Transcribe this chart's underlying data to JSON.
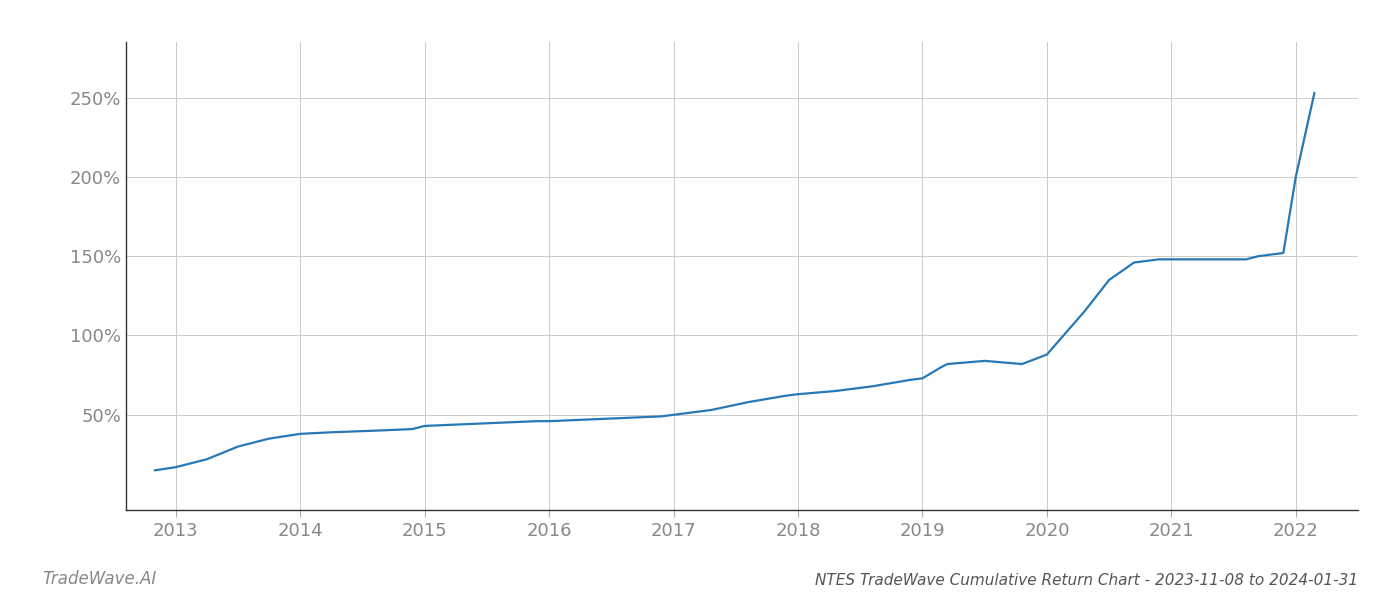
{
  "title": "NTES TradeWave Cumulative Return Chart - 2023-11-08 to 2024-01-31",
  "watermark": "TradeWave.AI",
  "line_color": "#2878b5",
  "line_width": 1.6,
  "background_color": "#ffffff",
  "grid_color": "#cccccc",
  "x_years": [
    2013,
    2014,
    2015,
    2016,
    2017,
    2018,
    2019,
    2020,
    2021,
    2022
  ],
  "x_data": [
    2012.83,
    2013.0,
    2013.25,
    2013.5,
    2013.75,
    2014.0,
    2014.25,
    2014.6,
    2014.9,
    2015.0,
    2015.3,
    2015.6,
    2015.9,
    2016.0,
    2016.3,
    2016.6,
    2016.9,
    2017.0,
    2017.3,
    2017.6,
    2017.9,
    2018.0,
    2018.3,
    2018.6,
    2018.9,
    2019.0,
    2019.15,
    2019.2,
    2019.5,
    2019.8,
    2020.0,
    2020.3,
    2020.5,
    2020.7,
    2020.9,
    2021.0,
    2021.3,
    2021.6,
    2021.65,
    2021.7,
    2021.9,
    2022.0,
    2022.15
  ],
  "y_data": [
    15,
    17,
    22,
    30,
    35,
    38,
    39,
    40,
    41,
    43,
    44,
    45,
    46,
    46,
    47,
    48,
    49,
    50,
    53,
    58,
    62,
    63,
    65,
    68,
    72,
    73,
    80,
    82,
    84,
    82,
    88,
    115,
    135,
    146,
    148,
    148,
    148,
    148,
    149,
    150,
    152,
    200,
    253
  ],
  "yticks": [
    50,
    100,
    150,
    200,
    250
  ],
  "ylim": [
    -10,
    285
  ],
  "xlim": [
    2012.6,
    2022.5
  ],
  "title_fontsize": 11,
  "tick_fontsize": 13,
  "watermark_fontsize": 12,
  "tick_color": "#888888",
  "title_color": "#555555",
  "watermark_color": "#888888",
  "spine_color": "#333333"
}
